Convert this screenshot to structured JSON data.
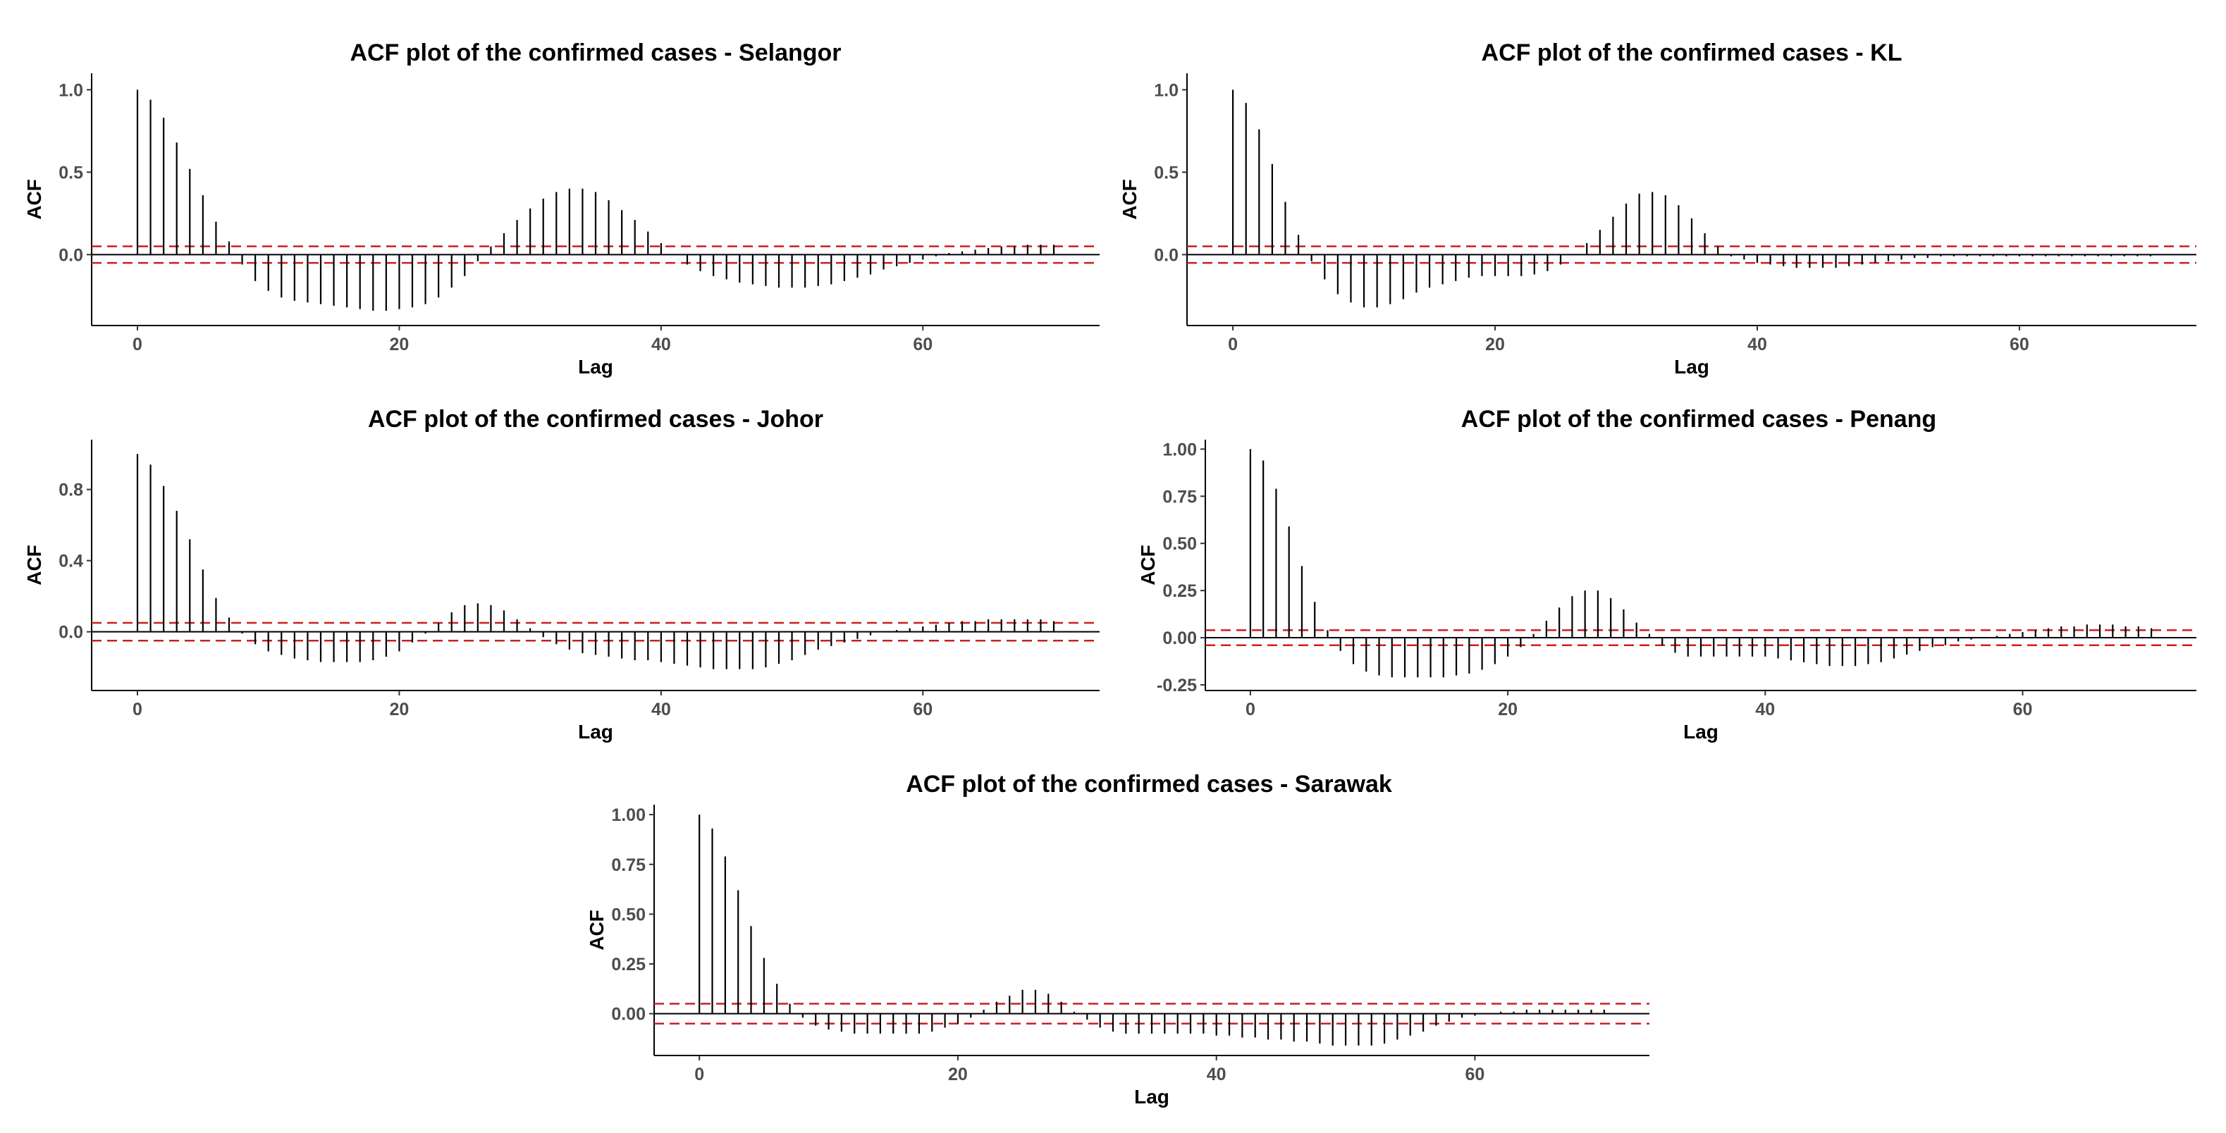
{
  "colors": {
    "stem": "#000000",
    "zero_line": "#000000",
    "conf_line": "#cc1f1f",
    "axis": "#000000",
    "tick_text": "#4d4d4d"
  },
  "chart_data": [
    {
      "type": "bar",
      "id": "selangor",
      "title": "ACF plot of the confirmed cases - Selangor",
      "xlabel": "Lag",
      "ylabel": "ACF",
      "xlim": [
        -3.5,
        73.5
      ],
      "ylim": [
        -0.43,
        1.1
      ],
      "xticks": [
        0,
        20,
        40,
        60
      ],
      "xtick_labels": [
        "0",
        "20",
        "40",
        "60"
      ],
      "yticks": [
        0.0,
        0.5,
        1.0
      ],
      "ytick_labels": [
        "0.0",
        "0.5",
        "1.0"
      ],
      "conf": 0.05,
      "lags": [
        0,
        1,
        2,
        3,
        4,
        5,
        6,
        7,
        8,
        9,
        10,
        11,
        12,
        13,
        14,
        15,
        16,
        17,
        18,
        19,
        20,
        21,
        22,
        23,
        24,
        25,
        26,
        27,
        28,
        29,
        30,
        31,
        32,
        33,
        34,
        35,
        36,
        37,
        38,
        39,
        40,
        41,
        42,
        43,
        44,
        45,
        46,
        47,
        48,
        49,
        50,
        51,
        52,
        53,
        54,
        55,
        56,
        57,
        58,
        59,
        60,
        61,
        62,
        63,
        64,
        65,
        66,
        67,
        68,
        69,
        70
      ],
      "values": [
        1.0,
        0.94,
        0.83,
        0.68,
        0.52,
        0.36,
        0.2,
        0.08,
        -0.06,
        -0.16,
        -0.22,
        -0.26,
        -0.28,
        -0.29,
        -0.3,
        -0.31,
        -0.32,
        -0.33,
        -0.34,
        -0.34,
        -0.33,
        -0.32,
        -0.3,
        -0.26,
        -0.2,
        -0.13,
        -0.04,
        0.05,
        0.13,
        0.21,
        0.28,
        0.34,
        0.38,
        0.4,
        0.4,
        0.38,
        0.33,
        0.27,
        0.21,
        0.14,
        0.07,
        0.0,
        -0.06,
        -0.1,
        -0.13,
        -0.15,
        -0.17,
        -0.18,
        -0.19,
        -0.2,
        -0.2,
        -0.2,
        -0.19,
        -0.18,
        -0.16,
        -0.14,
        -0.12,
        -0.09,
        -0.07,
        -0.05,
        -0.03,
        -0.01,
        0.01,
        0.02,
        0.03,
        0.04,
        0.05,
        0.05,
        0.06,
        0.06,
        0.06
      ]
    },
    {
      "type": "bar",
      "id": "kl",
      "title": "ACF plot of the confirmed cases - KL",
      "xlabel": "Lag",
      "ylabel": "ACF",
      "xlim": [
        -3.5,
        73.5
      ],
      "ylim": [
        -0.43,
        1.1
      ],
      "xticks": [
        0,
        20,
        40,
        60
      ],
      "xtick_labels": [
        "0",
        "20",
        "40",
        "60"
      ],
      "yticks": [
        0.0,
        0.5,
        1.0
      ],
      "ytick_labels": [
        "0.0",
        "0.5",
        "1.0"
      ],
      "conf": 0.05,
      "lags": [
        0,
        1,
        2,
        3,
        4,
        5,
        6,
        7,
        8,
        9,
        10,
        11,
        12,
        13,
        14,
        15,
        16,
        17,
        18,
        19,
        20,
        21,
        22,
        23,
        24,
        25,
        26,
        27,
        28,
        29,
        30,
        31,
        32,
        33,
        34,
        35,
        36,
        37,
        38,
        39,
        40,
        41,
        42,
        43,
        44,
        45,
        46,
        47,
        48,
        49,
        50,
        51,
        52,
        53,
        54,
        55,
        56,
        57,
        58,
        59,
        60,
        61,
        62,
        63,
        64,
        65,
        66,
        67,
        68,
        69,
        70
      ],
      "values": [
        1.0,
        0.92,
        0.76,
        0.55,
        0.32,
        0.12,
        -0.04,
        -0.15,
        -0.24,
        -0.29,
        -0.32,
        -0.32,
        -0.3,
        -0.27,
        -0.23,
        -0.2,
        -0.18,
        -0.16,
        -0.14,
        -0.13,
        -0.13,
        -0.13,
        -0.13,
        -0.12,
        -0.1,
        -0.06,
        0.0,
        0.07,
        0.15,
        0.23,
        0.31,
        0.37,
        0.38,
        0.36,
        0.3,
        0.22,
        0.13,
        0.05,
        -0.01,
        -0.03,
        -0.05,
        -0.06,
        -0.07,
        -0.08,
        -0.08,
        -0.08,
        -0.08,
        -0.07,
        -0.06,
        -0.05,
        -0.04,
        -0.03,
        -0.02,
        -0.02,
        -0.01,
        -0.01,
        -0.01,
        -0.01,
        -0.01,
        -0.01,
        -0.01,
        -0.01,
        -0.01,
        -0.01,
        -0.01,
        -0.01,
        -0.01,
        -0.01,
        -0.01,
        -0.01,
        -0.01
      ]
    },
    {
      "type": "bar",
      "id": "johor",
      "title": "ACF plot of the confirmed cases - Johor",
      "xlabel": "Lag",
      "ylabel": "ACF",
      "xlim": [
        -3.5,
        73.5
      ],
      "ylim": [
        -0.33,
        1.08
      ],
      "xticks": [
        0,
        20,
        40,
        60
      ],
      "xtick_labels": [
        "0",
        "20",
        "40",
        "60"
      ],
      "yticks": [
        0.0,
        0.4,
        0.8
      ],
      "ytick_labels": [
        "0.0",
        "0.4",
        "0.8"
      ],
      "conf": 0.05,
      "lags": [
        0,
        1,
        2,
        3,
        4,
        5,
        6,
        7,
        8,
        9,
        10,
        11,
        12,
        13,
        14,
        15,
        16,
        17,
        18,
        19,
        20,
        21,
        22,
        23,
        24,
        25,
        26,
        27,
        28,
        29,
        30,
        31,
        32,
        33,
        34,
        35,
        36,
        37,
        38,
        39,
        40,
        41,
        42,
        43,
        44,
        45,
        46,
        47,
        48,
        49,
        50,
        51,
        52,
        53,
        54,
        55,
        56,
        57,
        58,
        59,
        60,
        61,
        62,
        63,
        64,
        65,
        66,
        67,
        68,
        69,
        70
      ],
      "values": [
        1.0,
        0.94,
        0.82,
        0.68,
        0.52,
        0.35,
        0.19,
        0.08,
        -0.01,
        -0.07,
        -0.11,
        -0.13,
        -0.15,
        -0.16,
        -0.17,
        -0.17,
        -0.17,
        -0.17,
        -0.16,
        -0.14,
        -0.11,
        -0.06,
        -0.01,
        0.05,
        0.11,
        0.15,
        0.16,
        0.15,
        0.12,
        0.07,
        0.02,
        -0.03,
        -0.07,
        -0.1,
        -0.12,
        -0.13,
        -0.14,
        -0.15,
        -0.16,
        -0.16,
        -0.17,
        -0.18,
        -0.19,
        -0.2,
        -0.21,
        -0.21,
        -0.21,
        -0.21,
        -0.2,
        -0.18,
        -0.16,
        -0.13,
        -0.1,
        -0.08,
        -0.06,
        -0.04,
        -0.02,
        0.0,
        0.01,
        0.02,
        0.03,
        0.04,
        0.05,
        0.06,
        0.06,
        0.07,
        0.07,
        0.07,
        0.07,
        0.07,
        0.06
      ]
    },
    {
      "type": "bar",
      "id": "penang",
      "title": "ACF plot of the confirmed cases - Penang",
      "xlabel": "Lag",
      "ylabel": "ACF",
      "xlim": [
        -3.5,
        73.5
      ],
      "ylim": [
        -0.28,
        1.05
      ],
      "xticks": [
        0,
        20,
        40,
        60
      ],
      "xtick_labels": [
        "0",
        "20",
        "40",
        "60"
      ],
      "yticks": [
        -0.25,
        0.0,
        0.25,
        0.5,
        0.75,
        1.0
      ],
      "ytick_labels": [
        "-0.25",
        "0.00",
        "0.25",
        "0.50",
        "0.75",
        "1.00"
      ],
      "conf": 0.04,
      "lags": [
        0,
        1,
        2,
        3,
        4,
        5,
        6,
        7,
        8,
        9,
        10,
        11,
        12,
        13,
        14,
        15,
        16,
        17,
        18,
        19,
        20,
        21,
        22,
        23,
        24,
        25,
        26,
        27,
        28,
        29,
        30,
        31,
        32,
        33,
        34,
        35,
        36,
        37,
        38,
        39,
        40,
        41,
        42,
        43,
        44,
        45,
        46,
        47,
        48,
        49,
        50,
        51,
        52,
        53,
        54,
        55,
        56,
        57,
        58,
        59,
        60,
        61,
        62,
        63,
        64,
        65,
        66,
        67,
        68,
        69,
        70
      ],
      "values": [
        1.0,
        0.94,
        0.79,
        0.59,
        0.38,
        0.19,
        0.04,
        -0.07,
        -0.14,
        -0.18,
        -0.2,
        -0.21,
        -0.21,
        -0.21,
        -0.21,
        -0.21,
        -0.2,
        -0.19,
        -0.17,
        -0.14,
        -0.1,
        -0.05,
        0.02,
        0.09,
        0.16,
        0.22,
        0.25,
        0.25,
        0.21,
        0.15,
        0.08,
        0.02,
        -0.04,
        -0.08,
        -0.1,
        -0.1,
        -0.1,
        -0.1,
        -0.1,
        -0.1,
        -0.1,
        -0.11,
        -0.12,
        -0.13,
        -0.14,
        -0.15,
        -0.15,
        -0.15,
        -0.14,
        -0.13,
        -0.11,
        -0.09,
        -0.07,
        -0.05,
        -0.04,
        -0.02,
        -0.01,
        0.0,
        0.01,
        0.02,
        0.03,
        0.04,
        0.05,
        0.06,
        0.06,
        0.07,
        0.07,
        0.07,
        0.06,
        0.06,
        0.05
      ]
    },
    {
      "type": "bar",
      "id": "sarawak",
      "title": "ACF plot of the confirmed cases - Sarawak",
      "xlabel": "Lag",
      "ylabel": "ACF",
      "xlim": [
        -3.5,
        73.5
      ],
      "ylim": [
        -0.21,
        1.05
      ],
      "xticks": [
        0,
        20,
        40,
        60
      ],
      "xtick_labels": [
        "0",
        "20",
        "40",
        "60"
      ],
      "yticks": [
        0.0,
        0.25,
        0.5,
        0.75,
        1.0
      ],
      "ytick_labels": [
        "0.00",
        "0.25",
        "0.50",
        "0.75",
        "1.00"
      ],
      "conf": 0.05,
      "lags": [
        0,
        1,
        2,
        3,
        4,
        5,
        6,
        7,
        8,
        9,
        10,
        11,
        12,
        13,
        14,
        15,
        16,
        17,
        18,
        19,
        20,
        21,
        22,
        23,
        24,
        25,
        26,
        27,
        28,
        29,
        30,
        31,
        32,
        33,
        34,
        35,
        36,
        37,
        38,
        39,
        40,
        41,
        42,
        43,
        44,
        45,
        46,
        47,
        48,
        49,
        50,
        51,
        52,
        53,
        54,
        55,
        56,
        57,
        58,
        59,
        60,
        61,
        62,
        63,
        64,
        65,
        66,
        67,
        68,
        69,
        70
      ],
      "values": [
        1.0,
        0.93,
        0.79,
        0.62,
        0.44,
        0.28,
        0.15,
        0.05,
        -0.02,
        -0.06,
        -0.08,
        -0.09,
        -0.1,
        -0.1,
        -0.1,
        -0.1,
        -0.1,
        -0.1,
        -0.09,
        -0.07,
        -0.05,
        -0.02,
        0.02,
        0.06,
        0.09,
        0.12,
        0.12,
        0.1,
        0.06,
        0.01,
        -0.03,
        -0.07,
        -0.09,
        -0.1,
        -0.1,
        -0.1,
        -0.1,
        -0.1,
        -0.1,
        -0.1,
        -0.11,
        -0.11,
        -0.12,
        -0.12,
        -0.13,
        -0.13,
        -0.14,
        -0.14,
        -0.15,
        -0.16,
        -0.16,
        -0.16,
        -0.16,
        -0.15,
        -0.13,
        -0.11,
        -0.09,
        -0.06,
        -0.04,
        -0.02,
        -0.01,
        0.0,
        0.01,
        0.01,
        0.02,
        0.02,
        0.02,
        0.02,
        0.02,
        0.02,
        0.02
      ]
    }
  ]
}
